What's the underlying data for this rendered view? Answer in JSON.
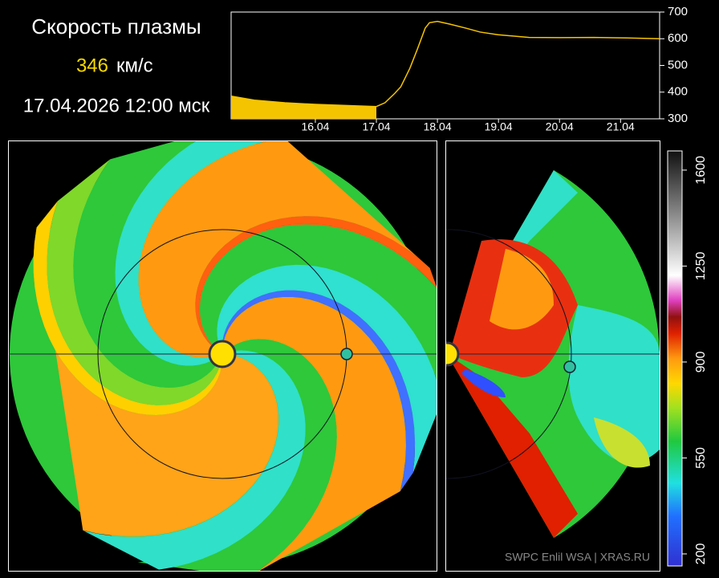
{
  "header": {
    "title": "Скорость плазмы",
    "speed": "346",
    "unit": "км/с",
    "datetime": "17.04.2026 12:00 мск"
  },
  "chart_data": {
    "type": "line",
    "xlim": [
      15.12,
      22.14
    ],
    "xticks": [
      {
        "value": 16.5,
        "label": "16.04"
      },
      {
        "value": 17.5,
        "label": "17.04"
      },
      {
        "value": 18.5,
        "label": "18.04"
      },
      {
        "value": 19.5,
        "label": "19.04"
      },
      {
        "value": 20.5,
        "label": "20.04"
      },
      {
        "value": 21.5,
        "label": "21.04"
      }
    ],
    "ylim": [
      300,
      700
    ],
    "yticks": [
      300,
      400,
      500,
      600,
      700
    ],
    "series": [
      {
        "color": "#f5c400",
        "fill": true,
        "x": [
          15.12,
          15.5,
          16,
          16.5,
          17,
          17.5
        ],
        "values": [
          385,
          370,
          360,
          354,
          350,
          346
        ]
      },
      {
        "color": "#f5c400",
        "fill": false,
        "x": [
          17.5,
          17.64,
          17.8,
          17.9,
          18.05,
          18.17,
          18.3,
          18.37,
          18.5,
          18.7,
          18.96,
          19.2,
          19.49,
          20,
          20.5,
          21.06,
          21.6,
          22.14
        ],
        "values": [
          346,
          360,
          395,
          420,
          490,
          560,
          640,
          660,
          665,
          655,
          640,
          625,
          615,
          605,
          604,
          605,
          603,
          600
        ]
      }
    ]
  },
  "colorbar": {
    "lim": [
      156,
      1670
    ],
    "ticks": [
      200,
      550,
      900,
      1250,
      1600
    ]
  },
  "credit": "SWPC Enlil WSA  |  XRAS.RU"
}
